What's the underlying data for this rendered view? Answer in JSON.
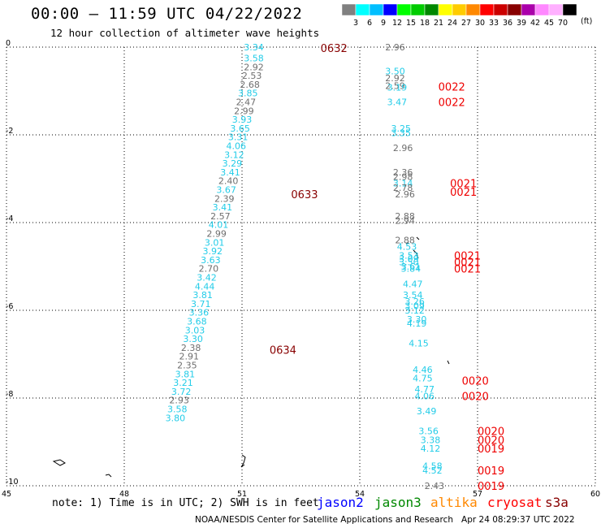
{
  "header": {
    "title": "00:00 – 11:59 UTC 04/22/2022",
    "subtitle": "12 hour collection of altimeter wave heights"
  },
  "colorbar": {
    "ticks": [
      "3",
      "6",
      "9",
      "12",
      "15",
      "18",
      "21",
      "24",
      "27",
      "30",
      "33",
      "36",
      "39",
      "42",
      "45",
      "70"
    ],
    "colors": [
      "#808080",
      "#00ffff",
      "#00bfff",
      "#0000ff",
      "#00ff00",
      "#00cc00",
      "#008800",
      "#ffff00",
      "#ffcc00",
      "#ff8800",
      "#ff0000",
      "#cc0000",
      "#880000",
      "#aa00aa",
      "#ff88ff",
      "#ffb0ff",
      "#000000"
    ],
    "unit": "(ft)"
  },
  "footer": {
    "note": "note: 1) Time is in UTC; 2) SWH is in feet",
    "satellites": [
      {
        "name": "jason2",
        "color": "#0000ff"
      },
      {
        "name": "jason3",
        "color": "#008800"
      },
      {
        "name": "altika",
        "color": "#ff8800"
      },
      {
        "name": "cryosat",
        "color": "#ff0000"
      },
      {
        "name": "s3a",
        "color": "#880000"
      }
    ],
    "credit": "NOAA/NESDIS Center for Satellite Applications and Research   Apr 24 08:29:37 UTC 2022"
  },
  "chart_data": {
    "type": "scatter",
    "title": "00:00 – 11:59 UTC 04/22/2022",
    "xlim": [
      45,
      60
    ],
    "ylim": [
      -10,
      0
    ],
    "x_ticks": [
      "45",
      "48",
      "51",
      "54",
      "57",
      "60"
    ],
    "y_ticks": [
      "0",
      "-2",
      "-4",
      "-6",
      "-8",
      "-10"
    ],
    "grid": true,
    "colors": {
      "cyan": "#22cce8",
      "gray": "#6e6e6e",
      "maroon": "#880000",
      "red": "#ee0000"
    },
    "track_labels": [
      {
        "x": 53.0,
        "y": -0.02,
        "text": "0632",
        "color": "maroon"
      },
      {
        "x": 52.25,
        "y": -3.35,
        "text": "0633",
        "color": "maroon"
      },
      {
        "x": 51.7,
        "y": -6.9,
        "text": "0634",
        "color": "maroon"
      },
      {
        "x": 56.0,
        "y": -0.9,
        "text": "0022",
        "color": "red"
      },
      {
        "x": 56.0,
        "y": -1.25,
        "text": "0022",
        "color": "red"
      },
      {
        "x": 56.3,
        "y": -3.1,
        "text": "0021",
        "color": "red"
      },
      {
        "x": 56.3,
        "y": -3.3,
        "text": "0021",
        "color": "red"
      },
      {
        "x": 56.4,
        "y": -4.75,
        "text": "0021",
        "color": "red"
      },
      {
        "x": 56.4,
        "y": -4.9,
        "text": "0021",
        "color": "red"
      },
      {
        "x": 56.4,
        "y": -5.05,
        "text": "0021",
        "color": "red"
      },
      {
        "x": 56.6,
        "y": -7.6,
        "text": "0020",
        "color": "red"
      },
      {
        "x": 56.6,
        "y": -7.95,
        "text": "0020",
        "color": "red"
      },
      {
        "x": 57.0,
        "y": -8.75,
        "text": "0020",
        "color": "red"
      },
      {
        "x": 57.0,
        "y": -8.95,
        "text": "0020",
        "color": "red"
      },
      {
        "x": 57.0,
        "y": -9.15,
        "text": "0019",
        "color": "red"
      },
      {
        "x": 57.0,
        "y": -9.65,
        "text": "0019",
        "color": "red"
      },
      {
        "x": 57.0,
        "y": -10.0,
        "text": "0019",
        "color": "red"
      }
    ],
    "points": [
      {
        "x": 51.3,
        "y": 0.0,
        "text": "3.34",
        "color": "cyan"
      },
      {
        "x": 51.3,
        "y": -0.25,
        "text": "3.58",
        "color": "cyan"
      },
      {
        "x": 51.3,
        "y": -0.45,
        "text": "2.92",
        "color": "gray"
      },
      {
        "x": 51.25,
        "y": -0.65,
        "text": "2.53",
        "color": "gray"
      },
      {
        "x": 51.2,
        "y": -0.85,
        "text": "2.68",
        "color": "gray"
      },
      {
        "x": 51.15,
        "y": -1.05,
        "text": "3.85",
        "color": "cyan"
      },
      {
        "x": 51.1,
        "y": -1.25,
        "text": "2.47",
        "color": "gray"
      },
      {
        "x": 51.05,
        "y": -1.45,
        "text": "2.99",
        "color": "gray"
      },
      {
        "x": 51.0,
        "y": -1.65,
        "text": "3.93",
        "color": "cyan"
      },
      {
        "x": 50.95,
        "y": -1.85,
        "text": "3.65",
        "color": "cyan"
      },
      {
        "x": 50.9,
        "y": -2.05,
        "text": "3.31",
        "color": "cyan"
      },
      {
        "x": 50.85,
        "y": -2.25,
        "text": "4.06",
        "color": "cyan"
      },
      {
        "x": 50.8,
        "y": -2.45,
        "text": "3.12",
        "color": "cyan"
      },
      {
        "x": 50.75,
        "y": -2.65,
        "text": "3.29",
        "color": "cyan"
      },
      {
        "x": 50.7,
        "y": -2.85,
        "text": "3.41",
        "color": "cyan"
      },
      {
        "x": 50.65,
        "y": -3.05,
        "text": "2.40",
        "color": "gray"
      },
      {
        "x": 50.6,
        "y": -3.25,
        "text": "3.67",
        "color": "cyan"
      },
      {
        "x": 50.55,
        "y": -3.45,
        "text": "2.39",
        "color": "gray"
      },
      {
        "x": 50.5,
        "y": -3.65,
        "text": "3.41",
        "color": "cyan"
      },
      {
        "x": 50.45,
        "y": -3.85,
        "text": "2.57",
        "color": "gray"
      },
      {
        "x": 50.4,
        "y": -4.05,
        "text": "4.01",
        "color": "cyan"
      },
      {
        "x": 50.35,
        "y": -4.25,
        "text": "2.99",
        "color": "gray"
      },
      {
        "x": 50.3,
        "y": -4.45,
        "text": "3.01",
        "color": "cyan"
      },
      {
        "x": 50.25,
        "y": -4.65,
        "text": "3.92",
        "color": "cyan"
      },
      {
        "x": 50.2,
        "y": -4.85,
        "text": "3.63",
        "color": "cyan"
      },
      {
        "x": 50.15,
        "y": -5.05,
        "text": "2.70",
        "color": "gray"
      },
      {
        "x": 50.1,
        "y": -5.25,
        "text": "3.42",
        "color": "cyan"
      },
      {
        "x": 50.05,
        "y": -5.45,
        "text": "4.44",
        "color": "cyan"
      },
      {
        "x": 50.0,
        "y": -5.65,
        "text": "3.81",
        "color": "cyan"
      },
      {
        "x": 49.95,
        "y": -5.85,
        "text": "3.71",
        "color": "cyan"
      },
      {
        "x": 49.9,
        "y": -6.05,
        "text": "3.36",
        "color": "cyan"
      },
      {
        "x": 49.85,
        "y": -6.25,
        "text": "3.68",
        "color": "cyan"
      },
      {
        "x": 49.8,
        "y": -6.45,
        "text": "3.03",
        "color": "cyan"
      },
      {
        "x": 49.75,
        "y": -6.65,
        "text": "3.30",
        "color": "cyan"
      },
      {
        "x": 49.7,
        "y": -6.85,
        "text": "2.38",
        "color": "gray"
      },
      {
        "x": 49.65,
        "y": -7.05,
        "text": "2.91",
        "color": "gray"
      },
      {
        "x": 49.6,
        "y": -7.25,
        "text": "2.35",
        "color": "gray"
      },
      {
        "x": 49.55,
        "y": -7.45,
        "text": "3.81",
        "color": "cyan"
      },
      {
        "x": 49.5,
        "y": -7.65,
        "text": "3.21",
        "color": "cyan"
      },
      {
        "x": 49.45,
        "y": -7.85,
        "text": "3.72",
        "color": "cyan"
      },
      {
        "x": 49.4,
        "y": -8.05,
        "text": "2.93",
        "color": "gray"
      },
      {
        "x": 49.35,
        "y": -8.25,
        "text": "3.58",
        "color": "cyan"
      },
      {
        "x": 49.3,
        "y": -8.45,
        "text": "3.80",
        "color": "cyan"
      },
      {
        "x": 54.9,
        "y": 0.0,
        "text": "2.96",
        "color": "gray"
      },
      {
        "x": 54.9,
        "y": -0.55,
        "text": "3.50",
        "color": "cyan"
      },
      {
        "x": 54.9,
        "y": -0.7,
        "text": "2.92",
        "color": "gray"
      },
      {
        "x": 54.9,
        "y": -0.88,
        "text": "2.59",
        "color": "gray"
      },
      {
        "x": 54.95,
        "y": -0.92,
        "text": "3.19",
        "color": "cyan"
      },
      {
        "x": 54.95,
        "y": -1.25,
        "text": "3.47",
        "color": "cyan"
      },
      {
        "x": 55.05,
        "y": -1.85,
        "text": "3.25",
        "color": "cyan"
      },
      {
        "x": 55.05,
        "y": -1.95,
        "text": "3.35",
        "color": "cyan"
      },
      {
        "x": 55.1,
        "y": -2.3,
        "text": "2.96",
        "color": "gray"
      },
      {
        "x": 55.1,
        "y": -2.85,
        "text": "2.36",
        "color": "gray"
      },
      {
        "x": 55.1,
        "y": -2.95,
        "text": "2.98",
        "color": "gray"
      },
      {
        "x": 55.1,
        "y": -3.1,
        "text": "3.14",
        "color": "cyan"
      },
      {
        "x": 55.1,
        "y": -3.2,
        "text": "2.78",
        "color": "gray"
      },
      {
        "x": 55.15,
        "y": -3.35,
        "text": "2.96",
        "color": "gray"
      },
      {
        "x": 55.15,
        "y": -3.85,
        "text": "2.88",
        "color": "gray"
      },
      {
        "x": 55.15,
        "y": -3.95,
        "text": "2.94",
        "color": "gray"
      },
      {
        "x": 55.15,
        "y": -4.4,
        "text": "2.88",
        "color": "gray"
      },
      {
        "x": 55.2,
        "y": -4.55,
        "text": "4.53",
        "color": "cyan"
      },
      {
        "x": 55.25,
        "y": -4.75,
        "text": "3.53",
        "color": "cyan"
      },
      {
        "x": 55.25,
        "y": -4.82,
        "text": "3.09",
        "color": "cyan"
      },
      {
        "x": 55.25,
        "y": -4.9,
        "text": "3.50",
        "color": "cyan"
      },
      {
        "x": 55.3,
        "y": -5.0,
        "text": "3.61",
        "color": "cyan"
      },
      {
        "x": 55.3,
        "y": -5.05,
        "text": "3.84",
        "color": "cyan"
      },
      {
        "x": 55.35,
        "y": -5.4,
        "text": "4.47",
        "color": "cyan"
      },
      {
        "x": 55.35,
        "y": -5.65,
        "text": "3.54",
        "color": "cyan"
      },
      {
        "x": 55.4,
        "y": -5.8,
        "text": "3.26",
        "color": "cyan"
      },
      {
        "x": 55.4,
        "y": -5.9,
        "text": "3.09",
        "color": "cyan"
      },
      {
        "x": 55.4,
        "y": -6.0,
        "text": "3.12",
        "color": "cyan"
      },
      {
        "x": 55.45,
        "y": -6.2,
        "text": "3.30",
        "color": "cyan"
      },
      {
        "x": 55.45,
        "y": -6.3,
        "text": "4.19",
        "color": "cyan"
      },
      {
        "x": 55.5,
        "y": -6.75,
        "text": "4.15",
        "color": "cyan"
      },
      {
        "x": 55.6,
        "y": -7.35,
        "text": "4.46",
        "color": "cyan"
      },
      {
        "x": 55.6,
        "y": -7.55,
        "text": "4.75",
        "color": "cyan"
      },
      {
        "x": 55.65,
        "y": -7.8,
        "text": "4.77",
        "color": "cyan"
      },
      {
        "x": 55.65,
        "y": -7.95,
        "text": "4.06",
        "color": "cyan"
      },
      {
        "x": 55.7,
        "y": -8.3,
        "text": "3.49",
        "color": "cyan"
      },
      {
        "x": 55.75,
        "y": -8.75,
        "text": "3.56",
        "color": "cyan"
      },
      {
        "x": 55.8,
        "y": -8.95,
        "text": "3.38",
        "color": "cyan"
      },
      {
        "x": 55.8,
        "y": -9.15,
        "text": "4.12",
        "color": "cyan"
      },
      {
        "x": 55.85,
        "y": -9.55,
        "text": "4.58",
        "color": "cyan"
      },
      {
        "x": 55.85,
        "y": -9.65,
        "text": "4.52",
        "color": "cyan"
      },
      {
        "x": 55.9,
        "y": -10.0,
        "text": "2.43",
        "color": "gray"
      }
    ]
  }
}
